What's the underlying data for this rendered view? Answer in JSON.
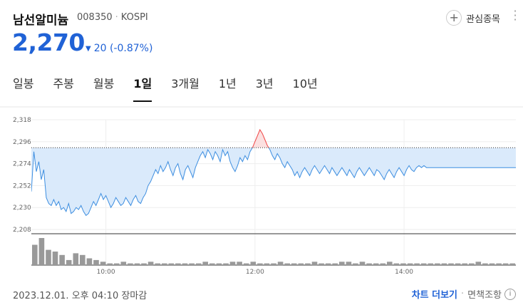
{
  "stock": {
    "name": "남선알미늄",
    "code": "008350",
    "market": "KOSPI",
    "price": "2,270",
    "change": "20",
    "change_pct": "(-0.87%)",
    "change_color": "#2062d6"
  },
  "favorite_label": "관심종목",
  "tabs": [
    {
      "label": "일봉"
    },
    {
      "label": "주봉"
    },
    {
      "label": "월봉"
    },
    {
      "label": "1일",
      "active": true
    },
    {
      "label": "3개월"
    },
    {
      "label": "1년"
    },
    {
      "label": "3년"
    },
    {
      "label": "10년"
    }
  ],
  "footer": {
    "timestamp": "2023.12.01. 오후 04:10 장마감",
    "chart_more": "차트 더보기",
    "disclaimer": "면책조항"
  },
  "chart_data": {
    "type": "line",
    "title": "",
    "prev_close": 2290,
    "ylim": [
      2208,
      2318
    ],
    "yticks": [
      "2,318",
      "2,296",
      "2,274",
      "2,252",
      "2,230",
      "2,208"
    ],
    "ytick_values": [
      2318,
      2296,
      2274,
      2252,
      2230,
      2208
    ],
    "xticks": [
      "10:00",
      "12:00",
      "14:00"
    ],
    "xtick_values": [
      "10:00",
      "12:00",
      "14:00"
    ],
    "session": [
      "09:00",
      "15:30"
    ],
    "colors": {
      "above": "#f04545",
      "below": "#3d8ee0",
      "fill_above": "#fbe0e0",
      "fill_below": "#daeafb"
    },
    "series": [
      {
        "values": [
          [
            0,
            2246
          ],
          [
            2,
            2286
          ],
          [
            4,
            2266
          ],
          [
            6,
            2276
          ],
          [
            8,
            2258
          ],
          [
            10,
            2268
          ],
          [
            12,
            2240
          ],
          [
            14,
            2234
          ],
          [
            16,
            2232
          ],
          [
            18,
            2238
          ],
          [
            20,
            2232
          ],
          [
            22,
            2236
          ],
          [
            24,
            2228
          ],
          [
            26,
            2230
          ],
          [
            28,
            2226
          ],
          [
            30,
            2234
          ],
          [
            32,
            2224
          ],
          [
            34,
            2226
          ],
          [
            36,
            2230
          ],
          [
            38,
            2228
          ],
          [
            40,
            2232
          ],
          [
            42,
            2226
          ],
          [
            44,
            2222
          ],
          [
            46,
            2224
          ],
          [
            48,
            2230
          ],
          [
            50,
            2236
          ],
          [
            52,
            2232
          ],
          [
            54,
            2238
          ],
          [
            56,
            2244
          ],
          [
            58,
            2238
          ],
          [
            60,
            2242
          ],
          [
            62,
            2236
          ],
          [
            64,
            2230
          ],
          [
            66,
            2234
          ],
          [
            68,
            2240
          ],
          [
            70,
            2236
          ],
          [
            72,
            2232
          ],
          [
            74,
            2234
          ],
          [
            76,
            2240
          ],
          [
            78,
            2236
          ],
          [
            80,
            2232
          ],
          [
            82,
            2238
          ],
          [
            84,
            2242
          ],
          [
            86,
            2236
          ],
          [
            88,
            2234
          ],
          [
            90,
            2240
          ],
          [
            92,
            2244
          ],
          [
            94,
            2252
          ],
          [
            96,
            2256
          ],
          [
            98,
            2262
          ],
          [
            100,
            2268
          ],
          [
            102,
            2264
          ],
          [
            104,
            2272
          ],
          [
            106,
            2266
          ],
          [
            108,
            2270
          ],
          [
            110,
            2276
          ],
          [
            112,
            2268
          ],
          [
            114,
            2262
          ],
          [
            116,
            2270
          ],
          [
            118,
            2274
          ],
          [
            120,
            2264
          ],
          [
            122,
            2258
          ],
          [
            124,
            2268
          ],
          [
            126,
            2272
          ],
          [
            128,
            2266
          ],
          [
            130,
            2260
          ],
          [
            132,
            2270
          ],
          [
            134,
            2276
          ],
          [
            136,
            2282
          ],
          [
            138,
            2286
          ],
          [
            140,
            2280
          ],
          [
            142,
            2288
          ],
          [
            144,
            2284
          ],
          [
            146,
            2278
          ],
          [
            148,
            2286
          ],
          [
            150,
            2282
          ],
          [
            152,
            2276
          ],
          [
            154,
            2288
          ],
          [
            156,
            2282
          ],
          [
            158,
            2286
          ],
          [
            160,
            2276
          ],
          [
            162,
            2270
          ],
          [
            164,
            2266
          ],
          [
            166,
            2272
          ],
          [
            168,
            2280
          ],
          [
            170,
            2276
          ],
          [
            172,
            2282
          ],
          [
            174,
            2278
          ],
          [
            176,
            2286
          ],
          [
            178,
            2290
          ],
          [
            180,
            2296
          ],
          [
            182,
            2302
          ],
          [
            184,
            2308
          ],
          [
            186,
            2304
          ],
          [
            188,
            2298
          ],
          [
            190,
            2292
          ],
          [
            192,
            2288
          ],
          [
            194,
            2282
          ],
          [
            196,
            2278
          ],
          [
            198,
            2284
          ],
          [
            200,
            2280
          ],
          [
            202,
            2274
          ],
          [
            204,
            2270
          ],
          [
            206,
            2276
          ],
          [
            208,
            2272
          ],
          [
            210,
            2268
          ],
          [
            212,
            2262
          ],
          [
            214,
            2266
          ],
          [
            216,
            2260
          ],
          [
            218,
            2266
          ],
          [
            220,
            2270
          ],
          [
            222,
            2266
          ],
          [
            224,
            2262
          ],
          [
            226,
            2268
          ],
          [
            228,
            2272
          ],
          [
            230,
            2268
          ],
          [
            232,
            2264
          ],
          [
            234,
            2268
          ],
          [
            236,
            2272
          ],
          [
            238,
            2268
          ],
          [
            240,
            2264
          ],
          [
            242,
            2270
          ],
          [
            244,
            2266
          ],
          [
            246,
            2262
          ],
          [
            248,
            2266
          ],
          [
            250,
            2270
          ],
          [
            252,
            2266
          ],
          [
            254,
            2262
          ],
          [
            256,
            2268
          ],
          [
            258,
            2264
          ],
          [
            260,
            2260
          ],
          [
            262,
            2266
          ],
          [
            264,
            2270
          ],
          [
            266,
            2266
          ],
          [
            268,
            2262
          ],
          [
            270,
            2266
          ],
          [
            272,
            2270
          ],
          [
            274,
            2266
          ],
          [
            276,
            2262
          ],
          [
            278,
            2268
          ],
          [
            280,
            2266
          ],
          [
            282,
            2262
          ],
          [
            284,
            2258
          ],
          [
            286,
            2264
          ],
          [
            288,
            2268
          ],
          [
            290,
            2264
          ],
          [
            292,
            2260
          ],
          [
            294,
            2266
          ],
          [
            296,
            2270
          ],
          [
            298,
            2266
          ],
          [
            300,
            2262
          ],
          [
            302,
            2268
          ],
          [
            304,
            2272
          ],
          [
            306,
            2268
          ],
          [
            308,
            2266
          ],
          [
            310,
            2270
          ],
          [
            312,
            2272
          ],
          [
            314,
            2270
          ],
          [
            316,
            2272
          ],
          [
            318,
            2270
          ],
          [
            320,
            2270
          ],
          [
            330,
            2270
          ],
          [
            340,
            2270
          ],
          [
            350,
            2270
          ],
          [
            360,
            2270
          ],
          [
            370,
            2270
          ],
          [
            380,
            2270
          ],
          [
            390,
            2270
          ]
        ]
      }
    ],
    "volume": [
      12,
      16,
      9,
      8,
      6,
      3,
      7,
      6,
      4,
      3,
      2,
      1,
      1,
      2,
      1,
      1,
      1,
      2,
      1,
      1,
      1,
      1,
      1,
      1,
      1,
      2,
      1,
      1,
      1,
      2,
      2,
      1,
      2,
      1,
      1,
      1,
      2,
      1,
      1,
      1,
      1,
      2,
      1,
      1,
      1,
      2,
      2,
      1,
      2,
      1,
      1,
      1,
      2,
      1,
      1,
      1,
      1,
      1,
      1,
      1,
      1,
      1,
      1,
      1,
      1,
      2,
      1,
      1,
      1,
      1,
      1
    ]
  }
}
